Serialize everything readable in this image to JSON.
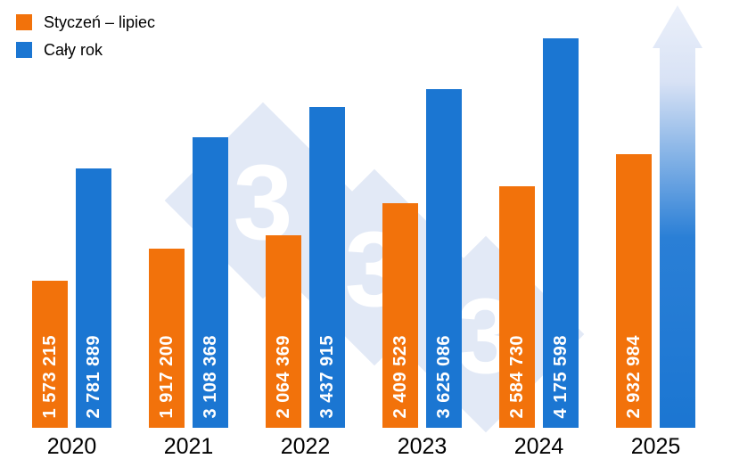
{
  "watermark": {
    "digits": [
      "3",
      "3",
      "3"
    ]
  },
  "chart_data": {
    "type": "bar",
    "title": "",
    "xlabel": "",
    "ylabel": "",
    "categories": [
      "2020",
      "2021",
      "2022",
      "2023",
      "2024",
      "2025"
    ],
    "series": [
      {
        "name": "Styczeń – lipiec",
        "color": "#F2720B",
        "values": [
          1573215,
          1917200,
          2064369,
          2409523,
          2584730,
          2932984
        ],
        "labels": [
          "1 573 215",
          "1 917 200",
          "2 064 369",
          "2 409 523",
          "2 584 730",
          "2 932 984"
        ]
      },
      {
        "name": "Cały rok",
        "color": "#1B76D2",
        "values": [
          2781889,
          3108368,
          3437915,
          3625086,
          4175598,
          null
        ],
        "labels": [
          "2 781 889",
          "3 108 368",
          "3 437 915",
          "3 625 086",
          "4 175 598",
          ""
        ]
      }
    ],
    "ylim": [
      0,
      4200000
    ],
    "grid": false,
    "legend_position": "top-left",
    "value_labels": "rotated-90-inside-bars",
    "projection_arrow": {
      "category": "2025",
      "series": "Cały rok"
    }
  }
}
